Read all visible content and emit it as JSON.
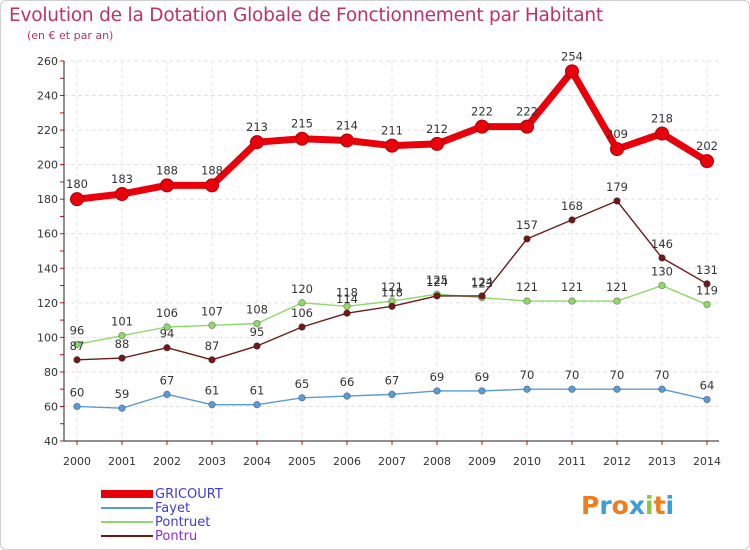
{
  "header": {
    "title": "Evolution de la Dotation Globale de Fonctionnement par Habitant",
    "subtitle": "(en € et par an)"
  },
  "chart_data": {
    "type": "line",
    "title": "Evolution de la Dotation Globale de Fonctionnement par Habitant",
    "subtitle": "(en € et par an)",
    "xlabel": "",
    "ylabel": "",
    "ylim": [
      40,
      260
    ],
    "yticks": [
      40,
      60,
      80,
      100,
      120,
      140,
      160,
      180,
      200,
      220,
      240,
      260
    ],
    "grid": true,
    "categories": [
      "2000",
      "2001",
      "2002",
      "2003",
      "2004",
      "2005",
      "2006",
      "2007",
      "2008",
      "2009",
      "2010",
      "2011",
      "2012",
      "2013",
      "2014"
    ],
    "series": [
      {
        "name": "GRICOURT",
        "color": "#e8000b",
        "values": [
          180,
          183,
          188,
          188,
          213,
          215,
          214,
          211,
          212,
          222,
          222,
          254,
          209,
          218,
          202
        ]
      },
      {
        "name": "Fayet",
        "color": "#5b9bd5",
        "values": [
          60,
          59,
          67,
          61,
          61,
          65,
          66,
          67,
          69,
          69,
          70,
          70,
          70,
          70,
          64
        ]
      },
      {
        "name": "Pontruet",
        "color": "#8fd86a",
        "values": [
          96,
          101,
          106,
          107,
          108,
          120,
          118,
          121,
          125,
          123,
          121,
          121,
          121,
          130,
          119
        ]
      },
      {
        "name": "Pontru",
        "color": "#6e1a1a",
        "values": [
          87,
          88,
          94,
          87,
          95,
          106,
          114,
          118,
          124,
          124,
          157,
          168,
          179,
          146,
          131
        ]
      }
    ],
    "legend_position": "bottom-left"
  },
  "logo": {
    "letters": [
      "P",
      "r",
      "o",
      "x",
      "i",
      "t",
      "i"
    ],
    "colors": [
      "#f07c1e",
      "#3e9dd6",
      "#f07c1e",
      "#3e9dd6",
      "#8cc63f",
      "#f07c1e",
      "#3e9dd6"
    ]
  }
}
